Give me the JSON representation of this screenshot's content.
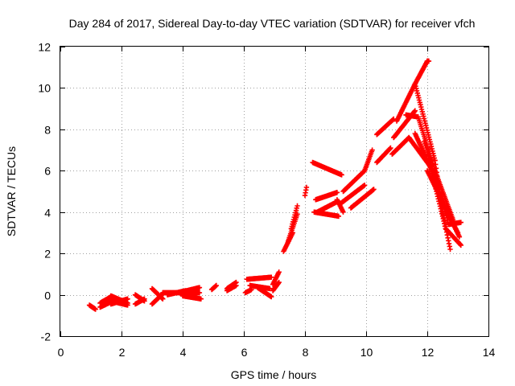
{
  "chart_data": {
    "type": "scatter",
    "title": "Day 284 of 2017, Sidereal Day-to-day VTEC variation (SDTVAR) for receiver vfch",
    "xlabel": "GPS time / hours",
    "ylabel": "SDTVAR / TECUs",
    "xlim": [
      0,
      14
    ],
    "ylim": [
      -2,
      12
    ],
    "xticks": [
      0,
      2,
      4,
      6,
      8,
      10,
      12,
      14
    ],
    "yticks": [
      -2,
      0,
      2,
      4,
      6,
      8,
      10,
      12
    ],
    "xtick_labels": [
      "0",
      "2",
      "4",
      "6",
      "8",
      "10",
      "12",
      "14"
    ],
    "ytick_labels": [
      "-2",
      "0",
      "2",
      "4",
      "6",
      "8",
      "10",
      "12"
    ],
    "grid": true,
    "legend": "none",
    "marker": "plus",
    "color": "#ff0000",
    "segments": [
      {
        "x0": 0.95,
        "x1": 1.15,
        "y0": -0.5,
        "y1": -0.7
      },
      {
        "x0": 1.3,
        "x1": 1.65,
        "y0": -0.4,
        "y1": -0.1
      },
      {
        "x0": 1.3,
        "x1": 1.65,
        "y0": -0.6,
        "y1": -0.35
      },
      {
        "x0": 1.65,
        "x1": 2.2,
        "y0": -0.05,
        "y1": -0.4
      },
      {
        "x0": 1.65,
        "x1": 2.2,
        "y0": -0.3,
        "y1": -0.5
      },
      {
        "x0": 1.65,
        "x1": 2.2,
        "y0": -0.45,
        "y1": -0.2
      },
      {
        "x0": 2.45,
        "x1": 2.75,
        "y0": 0.0,
        "y1": -0.3
      },
      {
        "x0": 2.45,
        "x1": 2.75,
        "y0": -0.45,
        "y1": -0.2
      },
      {
        "x0": 3.0,
        "x1": 3.35,
        "y0": 0.3,
        "y1": -0.2
      },
      {
        "x0": 3.0,
        "x1": 3.35,
        "y0": -0.45,
        "y1": 0.05
      },
      {
        "x0": 3.35,
        "x1": 4.0,
        "y0": 0.1,
        "y1": 0.1
      },
      {
        "x0": 3.5,
        "x1": 4.1,
        "y0": 0.0,
        "y1": 0.2
      },
      {
        "x0": 4.0,
        "x1": 4.55,
        "y0": 0.15,
        "y1": 0.35
      },
      {
        "x0": 4.0,
        "x1": 4.6,
        "y0": -0.05,
        "y1": -0.2
      },
      {
        "x0": 4.05,
        "x1": 4.55,
        "y0": 0.05,
        "y1": 0.1
      },
      {
        "x0": 4.95,
        "x1": 5.1,
        "y0": 0.25,
        "y1": 0.45
      },
      {
        "x0": 5.45,
        "x1": 5.75,
        "y0": 0.3,
        "y1": 0.6
      },
      {
        "x0": 5.45,
        "x1": 5.75,
        "y0": 0.2,
        "y1": 0.45
      },
      {
        "x0": 6.05,
        "x1": 6.25,
        "y0": 0.1,
        "y1": 0.25
      },
      {
        "x0": 6.1,
        "x1": 6.9,
        "y0": 0.75,
        "y1": 0.85
      },
      {
        "x0": 6.2,
        "x1": 6.85,
        "y0": 0.45,
        "y1": 0.3
      },
      {
        "x0": 6.45,
        "x1": 6.9,
        "y0": 0.35,
        "y1": -0.1
      },
      {
        "x0": 6.95,
        "x1": 7.15,
        "y0": 0.5,
        "y1": 1.1
      },
      {
        "x0": 6.95,
        "x1": 7.15,
        "y0": 0.2,
        "y1": 0.6
      },
      {
        "x0": 7.3,
        "x1": 7.6,
        "y0": 2.1,
        "y1": 3.0
      },
      {
        "x0": 7.45,
        "x1": 7.75,
        "y0": 2.6,
        "y1": 3.9
      },
      {
        "x0": 7.55,
        "x1": 7.75,
        "y0": 3.2,
        "y1": 4.3
      },
      {
        "x0": 8.0,
        "x1": 8.05,
        "y0": 4.8,
        "y1": 5.2
      },
      {
        "x0": 8.25,
        "x1": 9.2,
        "y0": 6.4,
        "y1": 5.8
      },
      {
        "x0": 8.3,
        "x1": 9.1,
        "y0": 4.0,
        "y1": 3.8
      },
      {
        "x0": 8.35,
        "x1": 9.05,
        "y0": 4.6,
        "y1": 4.95
      },
      {
        "x0": 8.4,
        "x1": 9.05,
        "y0": 4.0,
        "y1": 4.5
      },
      {
        "x0": 9.05,
        "x1": 9.25,
        "y0": 4.6,
        "y1": 4.0
      },
      {
        "x0": 9.15,
        "x1": 9.95,
        "y0": 4.4,
        "y1": 5.3
      },
      {
        "x0": 9.25,
        "x1": 9.95,
        "y0": 5.0,
        "y1": 6.0
      },
      {
        "x0": 9.5,
        "x1": 10.25,
        "y0": 4.2,
        "y1": 5.1
      },
      {
        "x0": 9.95,
        "x1": 10.2,
        "y0": 6.0,
        "y1": 7.0
      },
      {
        "x0": 10.35,
        "x1": 10.8,
        "y0": 6.4,
        "y1": 7.1
      },
      {
        "x0": 10.35,
        "x1": 10.9,
        "y0": 7.75,
        "y1": 8.5
      },
      {
        "x0": 10.85,
        "x1": 11.4,
        "y0": 6.8,
        "y1": 7.6
      },
      {
        "x0": 10.9,
        "x1": 11.6,
        "y0": 7.6,
        "y1": 8.9
      },
      {
        "x0": 11.0,
        "x1": 11.6,
        "y0": 8.4,
        "y1": 10.2
      },
      {
        "x0": 11.6,
        "x1": 12.0,
        "y0": 10.2,
        "y1": 11.3
      },
      {
        "x0": 12.0,
        "x1": 12.05,
        "y0": 11.3,
        "y1": 11.3
      },
      {
        "x0": 11.6,
        "x1": 12.25,
        "y0": 10.2,
        "y1": 6.5
      },
      {
        "x0": 12.25,
        "x1": 12.5,
        "y0": 6.5,
        "y1": 4.0
      },
      {
        "x0": 12.5,
        "x1": 12.75,
        "y0": 4.0,
        "y1": 2.2
      },
      {
        "x0": 11.3,
        "x1": 11.7,
        "y0": 8.7,
        "y1": 8.6
      },
      {
        "x0": 11.7,
        "x1": 12.3,
        "y0": 8.6,
        "y1": 5.8
      },
      {
        "x0": 12.3,
        "x1": 12.9,
        "y0": 5.8,
        "y1": 3.4
      },
      {
        "x0": 11.4,
        "x1": 12.1,
        "y0": 7.6,
        "y1": 6.2
      },
      {
        "x0": 12.1,
        "x1": 12.6,
        "y0": 6.2,
        "y1": 3.2
      },
      {
        "x0": 12.6,
        "x1": 13.1,
        "y0": 3.2,
        "y1": 2.4
      },
      {
        "x0": 11.6,
        "x1": 12.3,
        "y0": 7.8,
        "y1": 5.5
      },
      {
        "x0": 12.3,
        "x1": 12.7,
        "y0": 5.5,
        "y1": 3.4
      },
      {
        "x0": 12.7,
        "x1": 13.1,
        "y0": 3.4,
        "y1": 3.5
      },
      {
        "x0": 11.9,
        "x1": 12.5,
        "y0": 7.4,
        "y1": 4.4
      },
      {
        "x0": 12.5,
        "x1": 13.0,
        "y0": 4.4,
        "y1": 3.0
      },
      {
        "x0": 12.0,
        "x1": 12.4,
        "y0": 6.0,
        "y1": 4.8
      },
      {
        "x0": 12.4,
        "x1": 13.05,
        "y0": 4.8,
        "y1": 2.8
      }
    ]
  }
}
